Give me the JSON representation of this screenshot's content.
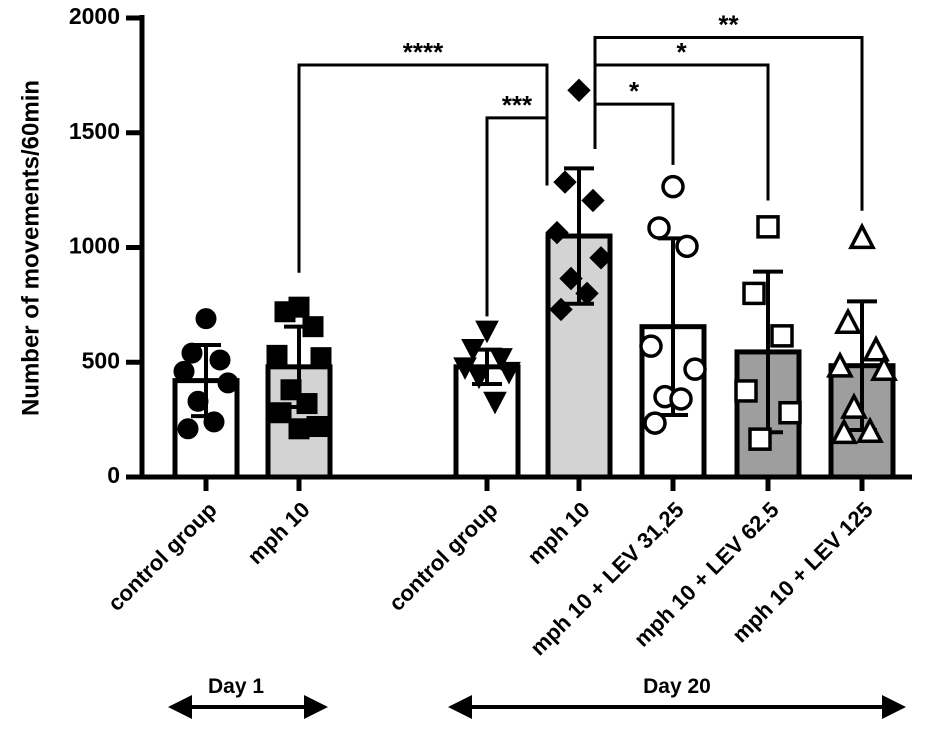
{
  "chart_data": {
    "type": "bar",
    "ylabel": "Number of movements/60min",
    "ylim": [
      0,
      2000
    ],
    "yticks": [
      0,
      500,
      1000,
      1500,
      2000
    ],
    "groups": [
      {
        "label": "Day 1",
        "categories": [
          0,
          1
        ]
      },
      {
        "label": "Day 20",
        "categories": [
          2,
          3,
          4,
          5,
          6
        ]
      }
    ],
    "categories": [
      "control group",
      "mph 10",
      "control group",
      "mph 10",
      "mph 10 + LEV 31,25",
      "mph 10 + LEV 62.5",
      "mph 10 + LEV 125"
    ],
    "bar_fill": [
      "#ffffff",
      "#d3d3d3",
      "#ffffff",
      "#d3d3d3",
      "#ffffff",
      "#9e9e9e",
      "#9e9e9e"
    ],
    "marker": [
      "circle-filled",
      "square-filled",
      "triangle-down-filled",
      "diamond-filled",
      "circle-open",
      "square-open",
      "triangle-open"
    ],
    "values": [
      420,
      480,
      480,
      1050,
      655,
      545,
      485
    ],
    "sd": [
      155,
      175,
      75,
      295,
      385,
      350,
      280
    ],
    "points": [
      [
        690,
        540,
        510,
        460,
        410,
        330,
        240,
        210
      ],
      [
        740,
        720,
        655,
        530,
        520,
        380,
        320,
        280,
        220,
        210
      ],
      [
        640,
        560,
        520,
        480,
        460,
        440,
        330
      ],
      [
        1685,
        1285,
        1205,
        1065,
        955,
        865,
        800,
        730
      ],
      [
        1265,
        1085,
        1005,
        570,
        470,
        350,
        340,
        235
      ],
      [
        1090,
        800,
        615,
        375,
        280,
        165
      ],
      [
        1040,
        670,
        550,
        480,
        465,
        300,
        195,
        190
      ]
    ],
    "significance": [
      {
        "from": 1,
        "to": 3,
        "label": "****"
      },
      {
        "from": 2,
        "to": 3,
        "label": "***"
      },
      {
        "from": 3,
        "to": 4,
        "label": "*"
      },
      {
        "from": 3,
        "to": 5,
        "label": "*"
      },
      {
        "from": 3,
        "to": 6,
        "label": "**"
      }
    ]
  }
}
